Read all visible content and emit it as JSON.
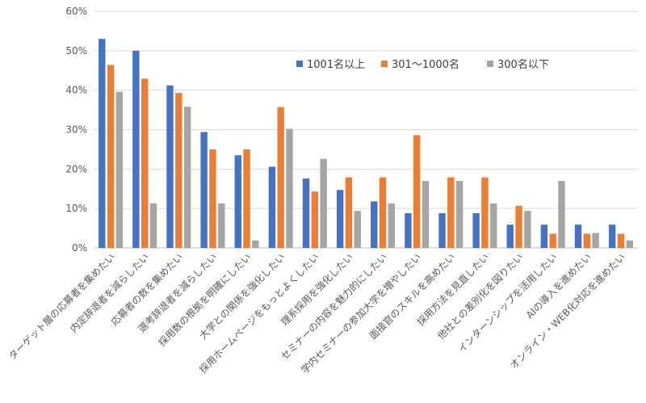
{
  "chart_data": {
    "type": "bar",
    "title": "",
    "xlabel": "",
    "ylabel": "",
    "ylim": [
      0,
      60
    ],
    "yticks": [
      "0%",
      "10%",
      "20%",
      "30%",
      "40%",
      "50%",
      "60%"
    ],
    "grid": "horizontal",
    "legend_position": "top-right",
    "categories": [
      "ターゲット層の応募者を集めたい",
      "内定辞退者を減らしたい",
      "応募者の数を集めたい",
      "選考辞退者を減らしたい",
      "採用数の根拠を明確にしたい",
      "大学との関係を強化したい",
      "採用ホームページをもっとよくしたい",
      "理系採用を強化したい",
      "セミナーの内容を魅力的にしたい",
      "学内セミナーの参加大学を増やしたい",
      "面接官のスキルを高めたい",
      "採用方法を見直したい",
      "他社との差別化を図りたい",
      "インターンシップを活用したい",
      "AIの導入を進めたい",
      "オンライン・WEB化対応を進めたい"
    ],
    "series": [
      {
        "name": "1001名以上",
        "color": "#4472C4",
        "values": [
          53,
          50,
          41.2,
          29.4,
          23.5,
          20.6,
          17.6,
          14.7,
          11.8,
          8.8,
          8.8,
          8.8,
          5.9,
          5.9,
          5.9,
          5.9
        ]
      },
      {
        "name": "301～1000名",
        "color": "#ED7D31",
        "values": [
          46.4,
          42.9,
          39.3,
          25,
          25,
          35.7,
          14.3,
          17.9,
          17.9,
          28.6,
          17.9,
          17.9,
          10.7,
          3.6,
          3.6,
          3.6
        ]
      },
      {
        "name": "300名以下",
        "color": "#A5A5A5",
        "values": [
          39.6,
          11.3,
          35.8,
          11.3,
          1.9,
          30.2,
          22.6,
          9.4,
          11.3,
          17,
          17,
          11.3,
          9.4,
          17,
          3.8,
          1.9
        ]
      }
    ]
  }
}
